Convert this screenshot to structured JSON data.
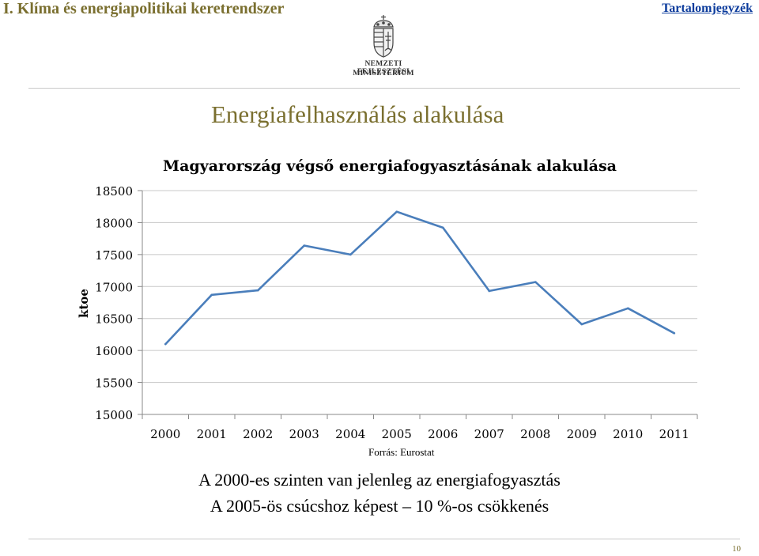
{
  "header": {
    "title": "I. Klíma és energiapolitikai keretrendszer",
    "toc_link": "Tartalomjegyzék"
  },
  "logo": {
    "line1": "NEMZETI FEJLESZTÉSI",
    "line2": "MINISZTÉRIUM"
  },
  "section_title": "Energiafelhasználás alakulása",
  "chart_data": {
    "type": "line",
    "title": "Magyarország végső energiafogyasztásának alakulása",
    "xlabel": "",
    "ylabel": "ktoe",
    "ylim": [
      15000,
      18500
    ],
    "yticks": [
      15000,
      15500,
      16000,
      16500,
      17000,
      17500,
      18000,
      18500
    ],
    "categories": [
      "2000",
      "2001",
      "2002",
      "2003",
      "2004",
      "2005",
      "2006",
      "2007",
      "2008",
      "2009",
      "2010",
      "2011"
    ],
    "series": [
      {
        "values": [
          16100,
          16870,
          16940,
          17640,
          17500,
          18170,
          17920,
          16930,
          17070,
          16410,
          16660,
          16270
        ]
      }
    ],
    "grid": true,
    "line_color": "#4a7ebb"
  },
  "source_text": "Forrás: Eurostat",
  "caption": {
    "line1": "A 2000-es szinten van jelenleg az energiafogyasztás",
    "line2": "A 2005-ös csúcshoz képest – 10 %-os csökkenés"
  },
  "page_number": "10"
}
